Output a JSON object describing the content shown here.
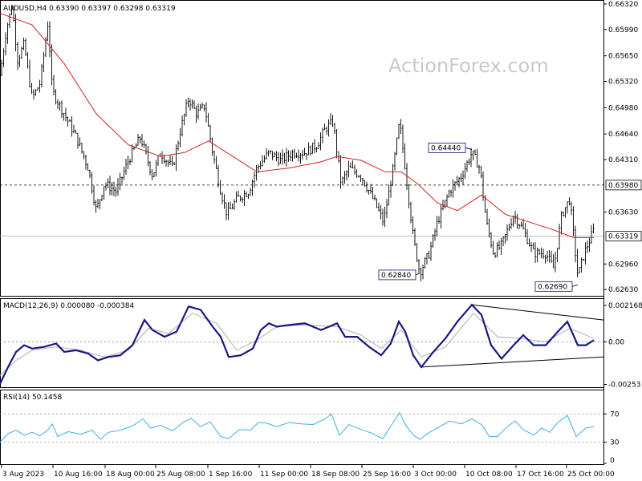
{
  "chart_data": [
    {
      "type": "candlestick",
      "symbol_line": "AUDUSD,H4  0.63390 0.63397 0.63298 0.63319",
      "watermark": "ActionForex.com",
      "y_ticks": [
        "0.66320",
        "0.65990",
        "0.65650",
        "0.65320",
        "0.64980",
        "0.64640",
        "0.64310",
        "0.63980",
        "0.63630",
        "0.63319",
        "0.62960",
        "0.62630"
      ],
      "ylim": [
        0.6258,
        0.6633
      ],
      "current_price": 0.63319,
      "current_label": "0.63319",
      "ref_level": 0.6398,
      "ref_label": "0.63980",
      "ma_label": "",
      "callouts": [
        {
          "label": "0.64440",
          "value": 0.6444,
          "at": "0.6444 high, 6 Oct"
        },
        {
          "label": "0.62840",
          "value": 0.6284,
          "at": "0.6284 low, 3 Oct"
        },
        {
          "label": "0.62690",
          "value": 0.6269,
          "at": "0.6269 low, 26 Oct"
        }
      ],
      "x_ticks": [
        "3 Aug 2023",
        "10 Aug 16:00",
        "18 Aug 00:00",
        "25 Aug 08:00",
        "1 Sep 16:00",
        "11 Sep 00:00",
        "18 Sep 08:00",
        "25 Sep 16:00",
        "3 Oct 00:00",
        "10 Oct 08:00",
        "17 Oct 16:00",
        "25 Oct 00:00"
      ],
      "close_path": [
        [
          0,
          0.654
        ],
        [
          8,
          0.66
        ],
        [
          15,
          0.663
        ],
        [
          22,
          0.656
        ],
        [
          30,
          0.658
        ],
        [
          40,
          0.651
        ],
        [
          50,
          0.653
        ],
        [
          60,
          0.661
        ],
        [
          65,
          0.652
        ],
        [
          80,
          0.649
        ],
        [
          95,
          0.646
        ],
        [
          110,
          0.642
        ],
        [
          120,
          0.6365
        ],
        [
          130,
          0.64
        ],
        [
          145,
          0.639
        ],
        [
          160,
          0.643
        ],
        [
          175,
          0.646
        ],
        [
          190,
          0.641
        ],
        [
          200,
          0.644
        ],
        [
          215,
          0.642
        ],
        [
          225,
          0.647
        ],
        [
          235,
          0.651
        ],
        [
          245,
          0.649
        ],
        [
          255,
          0.65
        ],
        [
          265,
          0.644
        ],
        [
          275,
          0.639
        ],
        [
          283,
          0.636
        ],
        [
          295,
          0.638
        ],
        [
          310,
          0.639
        ],
        [
          320,
          0.642
        ],
        [
          335,
          0.644
        ],
        [
          350,
          0.643
        ],
        [
          365,
          0.644
        ],
        [
          380,
          0.644
        ],
        [
          395,
          0.645
        ],
        [
          405,
          0.647
        ],
        [
          415,
          0.648
        ],
        [
          425,
          0.64
        ],
        [
          435,
          0.642
        ],
        [
          450,
          0.641
        ],
        [
          465,
          0.638
        ],
        [
          478,
          0.635
        ],
        [
          490,
          0.642
        ],
        [
          498,
          0.648
        ],
        [
          505,
          0.642
        ],
        [
          515,
          0.633
        ],
        [
          523,
          0.6285
        ],
        [
          535,
          0.631
        ],
        [
          545,
          0.635
        ],
        [
          560,
          0.639
        ],
        [
          575,
          0.641
        ],
        [
          588,
          0.644
        ],
        [
          598,
          0.642
        ],
        [
          606,
          0.635
        ],
        [
          615,
          0.631
        ],
        [
          625,
          0.632
        ],
        [
          640,
          0.636
        ],
        [
          652,
          0.634
        ],
        [
          665,
          0.631
        ],
        [
          680,
          0.631
        ],
        [
          690,
          0.629
        ],
        [
          700,
          0.636
        ],
        [
          710,
          0.638
        ],
        [
          720,
          0.628
        ],
        [
          728,
          0.631
        ],
        [
          740,
          0.634
        ]
      ],
      "ma_path": [
        [
          0,
          0.662
        ],
        [
          40,
          0.6605
        ],
        [
          80,
          0.6555
        ],
        [
          120,
          0.649
        ],
        [
          160,
          0.645
        ],
        [
          200,
          0.6435
        ],
        [
          230,
          0.644
        ],
        [
          260,
          0.6455
        ],
        [
          290,
          0.6435
        ],
        [
          320,
          0.6415
        ],
        [
          360,
          0.642
        ],
        [
          400,
          0.6428
        ],
        [
          420,
          0.6435
        ],
        [
          450,
          0.643
        ],
        [
          480,
          0.6415
        ],
        [
          500,
          0.6415
        ],
        [
          520,
          0.64
        ],
        [
          545,
          0.6375
        ],
        [
          570,
          0.6365
        ],
        [
          600,
          0.6385
        ],
        [
          630,
          0.636
        ],
        [
          660,
          0.635
        ],
        [
          690,
          0.634
        ],
        [
          715,
          0.633
        ],
        [
          740,
          0.633
        ]
      ]
    },
    {
      "type": "line",
      "label": "MACD(12,26,9) 0.000080 -0.000384",
      "y_ticks": [
        "0.002168",
        "0.00",
        "-0.00253"
      ],
      "ylim": [
        -0.0026,
        0.0024
      ],
      "macd_path": [
        [
          0,
          -0.0025
        ],
        [
          10,
          -0.0015
        ],
        [
          20,
          -0.0006
        ],
        [
          30,
          -0.0002
        ],
        [
          40,
          -0.0004
        ],
        [
          55,
          -0.0003
        ],
        [
          70,
          -0.0001
        ],
        [
          80,
          -0.0006
        ],
        [
          95,
          -0.0005
        ],
        [
          110,
          -0.0007
        ],
        [
          122,
          -0.0011
        ],
        [
          135,
          -0.0009
        ],
        [
          150,
          -0.0008
        ],
        [
          165,
          -0.0002
        ],
        [
          180,
          0.0013
        ],
        [
          190,
          0.0007
        ],
        [
          205,
          0.0003
        ],
        [
          220,
          0.0006
        ],
        [
          235,
          0.0021
        ],
        [
          250,
          0.0019
        ],
        [
          265,
          0.0009
        ],
        [
          275,
          0.0003
        ],
        [
          285,
          -0.0009
        ],
        [
          300,
          -0.0008
        ],
        [
          315,
          -0.0004
        ],
        [
          325,
          0.0007
        ],
        [
          335,
          0.0011
        ],
        [
          345,
          0.0009
        ],
        [
          360,
          0.001
        ],
        [
          380,
          0.0011
        ],
        [
          400,
          0.0007
        ],
        [
          410,
          0.0009
        ],
        [
          420,
          0.0011
        ],
        [
          430,
          0.0003
        ],
        [
          445,
          0.0003
        ],
        [
          460,
          -0.0003
        ],
        [
          475,
          -0.0008
        ],
        [
          487,
          -0.0001
        ],
        [
          497,
          0.0012
        ],
        [
          505,
          0.0006
        ],
        [
          515,
          -0.0008
        ],
        [
          525,
          -0.0015
        ],
        [
          540,
          -0.0006
        ],
        [
          555,
          0.0002
        ],
        [
          570,
          0.0012
        ],
        [
          588,
          0.0022
        ],
        [
          600,
          0.0016
        ],
        [
          612,
          -0.0002
        ],
        [
          625,
          -0.001
        ],
        [
          640,
          -0.0002
        ],
        [
          652,
          0.0004
        ],
        [
          665,
          -0.0002
        ],
        [
          680,
          -0.0002
        ],
        [
          695,
          0.0006
        ],
        [
          707,
          0.0012
        ],
        [
          720,
          -0.0002
        ],
        [
          730,
          -0.0002
        ],
        [
          740,
          0.0001
        ]
      ],
      "signal_path": [
        [
          0,
          -0.002
        ],
        [
          20,
          -0.0011
        ],
        [
          40,
          -0.0005
        ],
        [
          70,
          -0.0003
        ],
        [
          100,
          -0.0005
        ],
        [
          130,
          -0.0009
        ],
        [
          160,
          -0.0005
        ],
        [
          185,
          0.0008
        ],
        [
          210,
          0.0005
        ],
        [
          240,
          0.0017
        ],
        [
          270,
          0.0011
        ],
        [
          295,
          -0.0005
        ],
        [
          320,
          0.0001
        ],
        [
          345,
          0.0009
        ],
        [
          380,
          0.001
        ],
        [
          420,
          0.0009
        ],
        [
          450,
          0.0004
        ],
        [
          475,
          -0.0004
        ],
        [
          500,
          0.0007
        ],
        [
          525,
          -0.0009
        ],
        [
          555,
          -0.0003
        ],
        [
          590,
          0.0017
        ],
        [
          620,
          0.0003
        ],
        [
          650,
          0.0002
        ],
        [
          680,
          0.0
        ],
        [
          710,
          0.0008
        ],
        [
          740,
          0.0002
        ]
      ],
      "upper_trendline": [
        [
          588,
          0.0022
        ],
        [
          752,
          0.0013
        ]
      ],
      "lower_trendline": [
        [
          525,
          -0.0015
        ],
        [
          752,
          -0.0009
        ]
      ]
    },
    {
      "type": "line",
      "label": "RSI(14) 50.1458",
      "y_ticks": [
        "70",
        "30",
        "0"
      ],
      "ylim": [
        0,
        100
      ],
      "levels": [
        70,
        30
      ],
      "rsi_path": [
        [
          0,
          30
        ],
        [
          10,
          42
        ],
        [
          20,
          47
        ],
        [
          30,
          40
        ],
        [
          40,
          44
        ],
        [
          50,
          39
        ],
        [
          60,
          48
        ],
        [
          65,
          56
        ],
        [
          72,
          38
        ],
        [
          85,
          45
        ],
        [
          100,
          41
        ],
        [
          115,
          47
        ],
        [
          125,
          34
        ],
        [
          135,
          44
        ],
        [
          150,
          47
        ],
        [
          165,
          53
        ],
        [
          178,
          63
        ],
        [
          188,
          50
        ],
        [
          200,
          54
        ],
        [
          215,
          46
        ],
        [
          228,
          58
        ],
        [
          238,
          64
        ],
        [
          250,
          52
        ],
        [
          262,
          59
        ],
        [
          275,
          38
        ],
        [
          285,
          35
        ],
        [
          298,
          48
        ],
        [
          312,
          47
        ],
        [
          322,
          58
        ],
        [
          332,
          57
        ],
        [
          345,
          52
        ],
        [
          360,
          58
        ],
        [
          375,
          56
        ],
        [
          390,
          55
        ],
        [
          405,
          63
        ],
        [
          413,
          70
        ],
        [
          423,
          40
        ],
        [
          435,
          55
        ],
        [
          450,
          48
        ],
        [
          463,
          43
        ],
        [
          477,
          35
        ],
        [
          490,
          58
        ],
        [
          498,
          72
        ],
        [
          505,
          55
        ],
        [
          515,
          40
        ],
        [
          523,
          34
        ],
        [
          535,
          44
        ],
        [
          548,
          52
        ],
        [
          560,
          60
        ],
        [
          575,
          56
        ],
        [
          588,
          63
        ],
        [
          600,
          55
        ],
        [
          610,
          38
        ],
        [
          620,
          38
        ],
        [
          632,
          52
        ],
        [
          642,
          60
        ],
        [
          652,
          48
        ],
        [
          665,
          40
        ],
        [
          675,
          50
        ],
        [
          685,
          44
        ],
        [
          695,
          58
        ],
        [
          707,
          68
        ],
        [
          718,
          38
        ],
        [
          730,
          50
        ],
        [
          740,
          52
        ]
      ]
    }
  ]
}
